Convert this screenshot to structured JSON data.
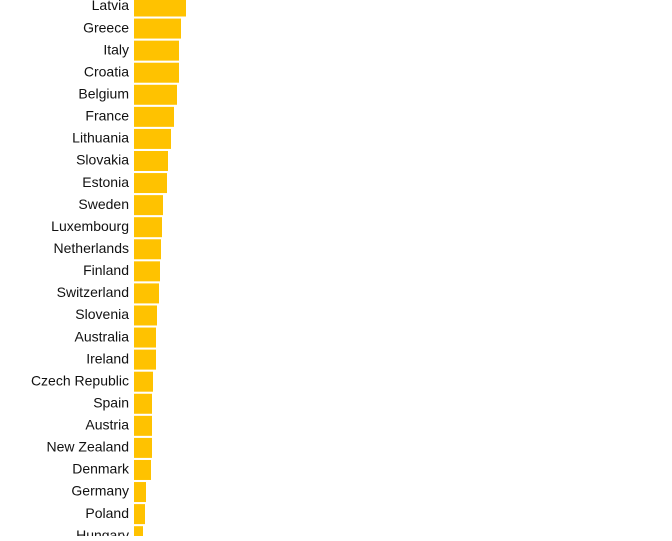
{
  "chart_data": {
    "type": "bar",
    "orientation": "horizontal",
    "categories": [
      "Latvia",
      "Greece",
      "Italy",
      "Croatia",
      "Belgium",
      "France",
      "Lithuania",
      "Slovakia",
      "Estonia",
      "Sweden",
      "Luxembourg",
      "Netherlands",
      "Finland",
      "Switzerland",
      "Slovenia",
      "Australia",
      "Ireland",
      "Czech Republic",
      "Spain",
      "Austria",
      "New Zealand",
      "Denmark",
      "Germany",
      "Poland",
      "Hungary"
    ],
    "values": [
      52,
      47,
      45,
      45,
      43,
      40,
      37,
      34,
      33,
      29,
      28,
      27,
      26,
      25,
      23,
      22,
      22,
      19,
      18,
      18,
      18,
      17,
      12,
      11,
      9
    ],
    "xlim": [
      0,
      540
    ],
    "grid": false,
    "colors": {
      "bar": "#FFC200",
      "label": "#111111",
      "background": "#FFFFFF"
    }
  }
}
